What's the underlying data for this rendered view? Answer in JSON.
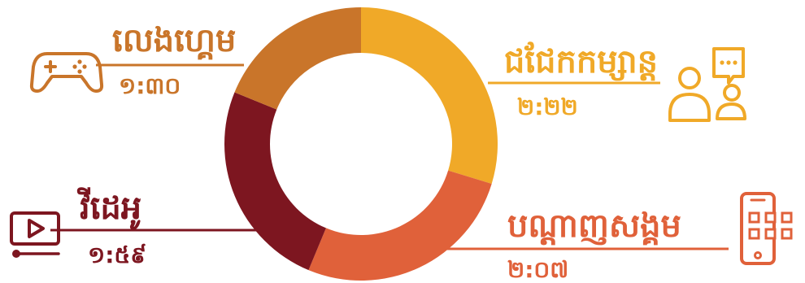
{
  "chart_data": {
    "type": "pie",
    "variant": "donut",
    "categories": [
      "ជជែកកម្សាន្ត",
      "បណ្ដាញសង្គម",
      "វីដេអូ",
      "លេងហ្គេម"
    ],
    "values_text": [
      "២:២២",
      "២:០៧",
      "១:៥៩",
      "១:៣០"
    ],
    "values_minutes": [
      142,
      127,
      119,
      90
    ],
    "colors": [
      "#F0A928",
      "#E0613A",
      "#7D1620",
      "#C9752A"
    ],
    "legend": "none",
    "title": ""
  },
  "icons": {
    "chat": "people-chat-icon",
    "social": "phone-apps-icon",
    "video": "video-play-icon",
    "gaming": "gamepad-icon"
  }
}
